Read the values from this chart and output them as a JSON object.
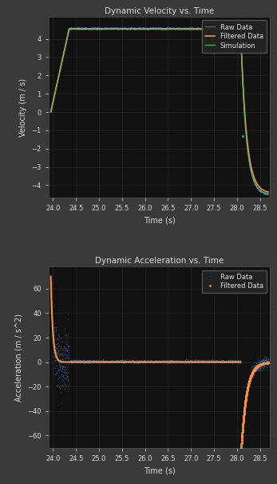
{
  "fig_bg_color": "#3a3a3a",
  "ax_bg_color": "#111111",
  "text_color": "#dddddd",
  "grid_color": "#333333",
  "plot1_title": "Dynamic Velocity vs. Time",
  "plot1_xlabel": "Time (s)",
  "plot1_ylabel": "Velocity (m / s)",
  "plot1_xlim": [
    23.9,
    28.72
  ],
  "plot1_ylim": [
    -4.7,
    5.2
  ],
  "plot1_yticks": [
    -4,
    -3,
    -2,
    -1,
    0,
    1,
    2,
    3,
    4
  ],
  "plot2_title": "Dynamic Acceleration vs. Time",
  "plot2_xlabel": "Time (s)",
  "plot2_ylabel": "Acceleration (m / s^2)",
  "plot2_xlim": [
    23.9,
    28.72
  ],
  "plot2_ylim": [
    -70,
    78
  ],
  "plot2_yticks": [
    -60,
    -40,
    -20,
    0,
    20,
    40,
    60
  ],
  "xticks": [
    24,
    24.5,
    25,
    25.5,
    26,
    26.5,
    27,
    27.5,
    28,
    28.5
  ],
  "raw_color": "#4472c4",
  "filtered_color": "#f5923e",
  "sim_color": "#5cb85c",
  "legend1_labels": [
    "Raw Data",
    "Filtered Data",
    "Simulation"
  ],
  "legend2_labels": [
    "Raw Data",
    "Filtered Data"
  ]
}
